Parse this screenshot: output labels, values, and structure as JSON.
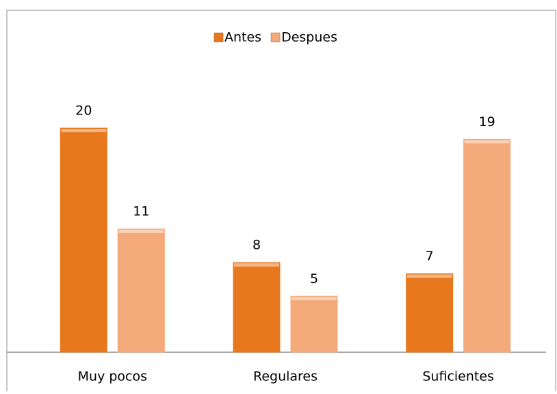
{
  "chart_data": {
    "type": "bar",
    "categories": [
      "Muy pocos",
      "Regulares",
      "Suficientes"
    ],
    "series": [
      {
        "name": "Antes",
        "color": "#e8781e",
        "values": [
          20,
          8,
          7
        ]
      },
      {
        "name": "Despues",
        "color": "#f4a97a",
        "values": [
          11,
          5,
          19
        ]
      }
    ],
    "legend": "top"
  }
}
